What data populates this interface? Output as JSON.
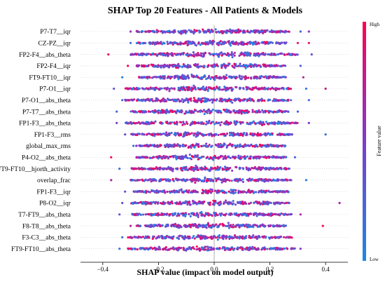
{
  "chart_data": {
    "type": "scatter",
    "subtype": "shap-beeswarm",
    "title": "SHAP Top 20 Features - All Patients & Models",
    "xlabel": "SHAP value (impact on model output)",
    "xlim": [
      -0.48,
      0.48
    ],
    "xticks": [
      -0.4,
      -0.2,
      0.0,
      0.2,
      0.4
    ],
    "xtick_labels": [
      "−0.4",
      "−0.2",
      "0.0",
      "0.2",
      "0.4"
    ],
    "grid": false,
    "colorbar": {
      "label": "Feature value",
      "high_label": "High",
      "low_label": "Low",
      "low_color": "#1e88e5",
      "high_color": "#ff0052",
      "placement": "right"
    },
    "features": [
      {
        "name": "P7-T7__iqr",
        "range": [
          -0.28,
          0.27
        ],
        "outliers": [
          -0.3,
          0.31,
          0.34
        ]
      },
      {
        "name": "CZ-PZ__iqr",
        "range": [
          -0.28,
          0.26
        ],
        "outliers": [
          -0.3,
          0.3,
          0.34
        ]
      },
      {
        "name": "FP2-F4__abs_theta",
        "range": [
          -0.3,
          0.3
        ],
        "outliers": [
          -0.38,
          0.35
        ]
      },
      {
        "name": "FP2-F4__iqr",
        "range": [
          -0.28,
          0.26
        ],
        "outliers": [
          -0.31,
          0.31
        ]
      },
      {
        "name": "FT9-FT10__iqr",
        "range": [
          -0.27,
          0.26
        ],
        "outliers": [
          -0.33,
          0.32
        ]
      },
      {
        "name": "P7-O1__iqr",
        "range": [
          -0.32,
          0.28
        ],
        "outliers": [
          -0.36,
          0.33,
          0.4
        ]
      },
      {
        "name": "P7-O1__abs_theta",
        "range": [
          -0.32,
          0.28
        ],
        "outliers": [
          -0.33,
          0.34
        ]
      },
      {
        "name": "P7-T7__abs_theta",
        "range": [
          -0.3,
          0.27
        ],
        "outliers": [
          -0.35,
          0.3
        ]
      },
      {
        "name": "FP1-F3__abs_theta",
        "range": [
          -0.32,
          0.3
        ],
        "outliers": [
          -0.35,
          0.34
        ]
      },
      {
        "name": "FP1-F3__rms",
        "range": [
          -0.3,
          0.28
        ],
        "outliers": [
          -0.32,
          0.4
        ]
      },
      {
        "name": "global_max_rms",
        "range": [
          -0.28,
          0.26
        ],
        "outliers": [
          -0.29
        ]
      },
      {
        "name": "P4-O2__abs_theta",
        "range": [
          -0.28,
          0.26
        ],
        "outliers": [
          -0.37,
          0.29
        ]
      },
      {
        "name": "FT9-FT10__hjorth_activity",
        "range": [
          -0.3,
          0.27
        ],
        "outliers": [
          -0.34
        ]
      },
      {
        "name": "overlap_frac",
        "range": [
          -0.3,
          0.28
        ],
        "outliers": [
          -0.37,
          0.33
        ]
      },
      {
        "name": "FP1-F3__iqr",
        "range": [
          -0.29,
          0.27
        ],
        "outliers": [
          -0.32
        ]
      },
      {
        "name": "P8-O2__iqr",
        "range": [
          -0.3,
          0.27
        ],
        "outliers": [
          -0.33,
          0.45
        ]
      },
      {
        "name": "T7-FT9__abs_theta",
        "range": [
          -0.3,
          0.28
        ],
        "outliers": [
          -0.34,
          0.31
        ]
      },
      {
        "name": "F8-T8__abs_theta",
        "range": [
          -0.28,
          0.26
        ],
        "outliers": [
          -0.3,
          0.39
        ]
      },
      {
        "name": "F3-C3__abs_theta",
        "range": [
          -0.31,
          0.28
        ],
        "outliers": [
          -0.33
        ]
      },
      {
        "name": "FT9-FT10__abs_theta",
        "range": [
          -0.31,
          0.29
        ],
        "outliers": [
          -0.34,
          0.31
        ]
      }
    ]
  }
}
